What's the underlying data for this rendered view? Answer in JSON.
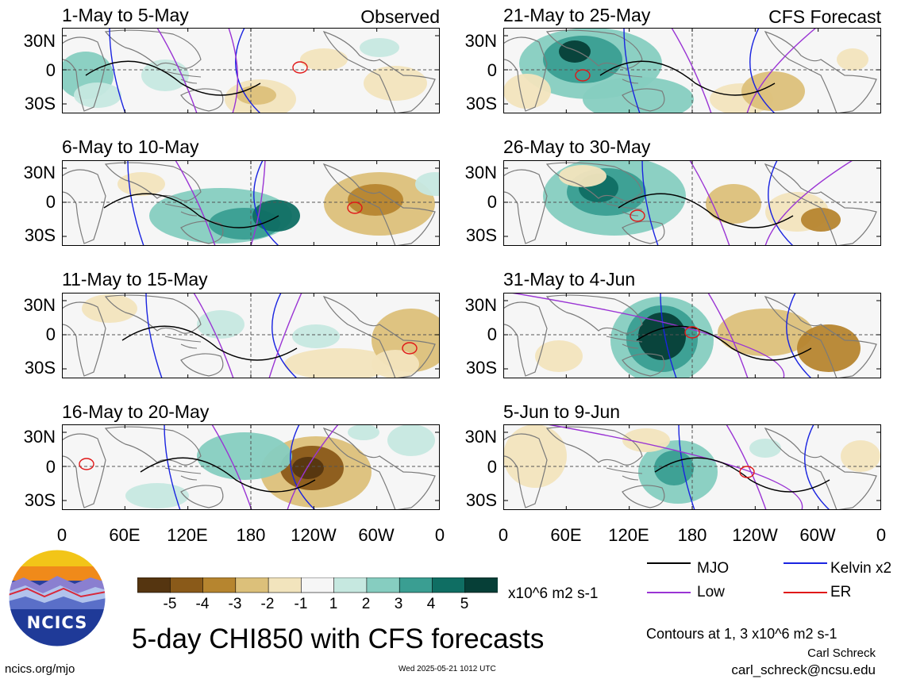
{
  "panels_left": [
    {
      "title": "1-May to 5-May",
      "tag": "Observed"
    },
    {
      "title": "6-May to 10-May",
      "tag": ""
    },
    {
      "title": "11-May to 15-May",
      "tag": ""
    },
    {
      "title": "16-May to 20-May",
      "tag": ""
    }
  ],
  "panels_right": [
    {
      "title": "21-May to 25-May",
      "tag": "CFS Forecast"
    },
    {
      "title": "26-May to 30-May",
      "tag": ""
    },
    {
      "title": "31-May to 4-Jun",
      "tag": ""
    },
    {
      "title": "5-Jun to 9-Jun",
      "tag": ""
    }
  ],
  "lat_labels": [
    "30N",
    "0",
    "30S"
  ],
  "lon_labels": [
    "0",
    "60E",
    "120E",
    "180",
    "120W",
    "60W",
    "0"
  ],
  "colorbar": {
    "colors": [
      "#553510",
      "#8a5a19",
      "#b6852f",
      "#dcc07a",
      "#f2e4bd",
      "#f6f6f6",
      "#c6e8e0",
      "#86cdc0",
      "#3a9e92",
      "#0f6e63",
      "#063f37"
    ],
    "labels": [
      "-5",
      "-4",
      "-3",
      "-2",
      "-1",
      "1",
      "2",
      "3",
      "4",
      "5"
    ],
    "units": "x10^6 m2 s-1"
  },
  "main_title": "5-day CHI850 with CFS forecasts",
  "legend": [
    {
      "label": "MJO",
      "color": "#000000"
    },
    {
      "label": "Kelvin x2",
      "color": "#1a24e0"
    },
    {
      "label": "Low",
      "color": "#9a34d4"
    },
    {
      "label": "ER",
      "color": "#e01818"
    }
  ],
  "contours_note": "Contours at 1, 3 x10^6 m2 s-1",
  "author": "Carl Schreck",
  "email": "carl_schreck@ncsu.edu",
  "site": "ncics.org/mjo",
  "timestamp": "Wed 2025-05-21 1012 UTC",
  "logo_text": "NCICS"
}
